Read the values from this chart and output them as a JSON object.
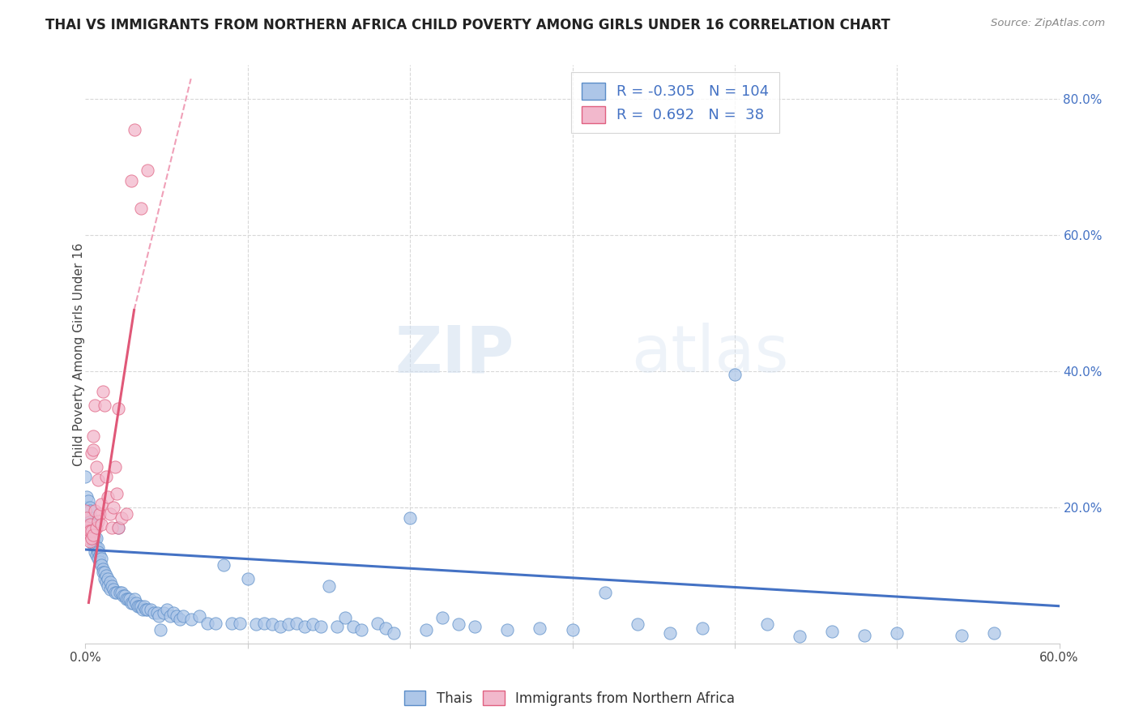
{
  "title": "THAI VS IMMIGRANTS FROM NORTHERN AFRICA CHILD POVERTY AMONG GIRLS UNDER 16 CORRELATION CHART",
  "source": "Source: ZipAtlas.com",
  "ylabel": "Child Poverty Among Girls Under 16",
  "xlim": [
    0.0,
    0.6
  ],
  "ylim": [
    0.0,
    0.85
  ],
  "watermark_zip": "ZIP",
  "watermark_atlas": "atlas",
  "legend_thai_R": "-0.305",
  "legend_thai_N": "104",
  "legend_na_R": "0.692",
  "legend_na_N": "38",
  "thai_color": "#adc6e8",
  "na_color": "#f2b8cc",
  "thai_edge_color": "#5b8dc8",
  "na_edge_color": "#e06080",
  "thai_line_color": "#4472c4",
  "na_line_color": "#e05878",
  "na_dash_color": "#f0a0b8",
  "background_color": "#ffffff",
  "grid_color": "#d8d8d8",
  "title_fontsize": 12,
  "thai_scatter": [
    [
      0.0,
      0.245
    ],
    [
      0.001,
      0.215
    ],
    [
      0.001,
      0.2
    ],
    [
      0.002,
      0.21
    ],
    [
      0.002,
      0.185
    ],
    [
      0.002,
      0.175
    ],
    [
      0.003,
      0.2
    ],
    [
      0.003,
      0.195
    ],
    [
      0.003,
      0.16
    ],
    [
      0.004,
      0.185
    ],
    [
      0.004,
      0.175
    ],
    [
      0.004,
      0.155
    ],
    [
      0.005,
      0.175
    ],
    [
      0.005,
      0.165
    ],
    [
      0.005,
      0.145
    ],
    [
      0.006,
      0.155
    ],
    [
      0.006,
      0.145
    ],
    [
      0.006,
      0.135
    ],
    [
      0.007,
      0.155
    ],
    [
      0.007,
      0.14
    ],
    [
      0.007,
      0.13
    ],
    [
      0.008,
      0.14
    ],
    [
      0.008,
      0.135
    ],
    [
      0.008,
      0.125
    ],
    [
      0.009,
      0.13
    ],
    [
      0.009,
      0.12
    ],
    [
      0.01,
      0.125
    ],
    [
      0.01,
      0.115
    ],
    [
      0.011,
      0.11
    ],
    [
      0.011,
      0.105
    ],
    [
      0.012,
      0.105
    ],
    [
      0.012,
      0.095
    ],
    [
      0.013,
      0.1
    ],
    [
      0.013,
      0.09
    ],
    [
      0.014,
      0.095
    ],
    [
      0.014,
      0.085
    ],
    [
      0.015,
      0.09
    ],
    [
      0.015,
      0.08
    ],
    [
      0.016,
      0.085
    ],
    [
      0.017,
      0.08
    ],
    [
      0.018,
      0.075
    ],
    [
      0.019,
      0.075
    ],
    [
      0.02,
      0.17
    ],
    [
      0.021,
      0.075
    ],
    [
      0.022,
      0.075
    ],
    [
      0.023,
      0.07
    ],
    [
      0.024,
      0.07
    ],
    [
      0.025,
      0.065
    ],
    [
      0.026,
      0.065
    ],
    [
      0.027,
      0.065
    ],
    [
      0.028,
      0.06
    ],
    [
      0.029,
      0.06
    ],
    [
      0.03,
      0.065
    ],
    [
      0.031,
      0.06
    ],
    [
      0.032,
      0.055
    ],
    [
      0.033,
      0.055
    ],
    [
      0.034,
      0.055
    ],
    [
      0.035,
      0.05
    ],
    [
      0.036,
      0.055
    ],
    [
      0.037,
      0.05
    ],
    [
      0.038,
      0.05
    ],
    [
      0.04,
      0.05
    ],
    [
      0.042,
      0.045
    ],
    [
      0.044,
      0.045
    ],
    [
      0.045,
      0.04
    ],
    [
      0.046,
      0.02
    ],
    [
      0.048,
      0.045
    ],
    [
      0.05,
      0.05
    ],
    [
      0.052,
      0.04
    ],
    [
      0.054,
      0.045
    ],
    [
      0.056,
      0.04
    ],
    [
      0.058,
      0.035
    ],
    [
      0.06,
      0.04
    ],
    [
      0.065,
      0.035
    ],
    [
      0.07,
      0.04
    ],
    [
      0.075,
      0.03
    ],
    [
      0.08,
      0.03
    ],
    [
      0.085,
      0.115
    ],
    [
      0.09,
      0.03
    ],
    [
      0.095,
      0.03
    ],
    [
      0.1,
      0.095
    ],
    [
      0.105,
      0.028
    ],
    [
      0.11,
      0.03
    ],
    [
      0.115,
      0.028
    ],
    [
      0.12,
      0.025
    ],
    [
      0.125,
      0.028
    ],
    [
      0.13,
      0.03
    ],
    [
      0.135,
      0.025
    ],
    [
      0.14,
      0.028
    ],
    [
      0.145,
      0.025
    ],
    [
      0.15,
      0.085
    ],
    [
      0.155,
      0.025
    ],
    [
      0.16,
      0.038
    ],
    [
      0.165,
      0.025
    ],
    [
      0.17,
      0.02
    ],
    [
      0.18,
      0.03
    ],
    [
      0.185,
      0.022
    ],
    [
      0.19,
      0.015
    ],
    [
      0.2,
      0.185
    ],
    [
      0.21,
      0.02
    ],
    [
      0.22,
      0.038
    ],
    [
      0.23,
      0.028
    ],
    [
      0.24,
      0.025
    ],
    [
      0.26,
      0.02
    ],
    [
      0.28,
      0.022
    ],
    [
      0.3,
      0.02
    ],
    [
      0.32,
      0.075
    ],
    [
      0.34,
      0.028
    ],
    [
      0.36,
      0.015
    ],
    [
      0.38,
      0.022
    ],
    [
      0.4,
      0.395
    ],
    [
      0.42,
      0.028
    ],
    [
      0.44,
      0.01
    ],
    [
      0.46,
      0.018
    ],
    [
      0.48,
      0.012
    ],
    [
      0.5,
      0.015
    ],
    [
      0.54,
      0.012
    ],
    [
      0.56,
      0.015
    ]
  ],
  "na_scatter": [
    [
      0.0,
      0.195
    ],
    [
      0.001,
      0.185
    ],
    [
      0.001,
      0.17
    ],
    [
      0.002,
      0.165
    ],
    [
      0.002,
      0.155
    ],
    [
      0.003,
      0.175
    ],
    [
      0.003,
      0.165
    ],
    [
      0.003,
      0.15
    ],
    [
      0.004,
      0.28
    ],
    [
      0.004,
      0.165
    ],
    [
      0.004,
      0.155
    ],
    [
      0.005,
      0.305
    ],
    [
      0.005,
      0.285
    ],
    [
      0.005,
      0.16
    ],
    [
      0.006,
      0.35
    ],
    [
      0.006,
      0.195
    ],
    [
      0.007,
      0.26
    ],
    [
      0.007,
      0.17
    ],
    [
      0.008,
      0.24
    ],
    [
      0.008,
      0.18
    ],
    [
      0.009,
      0.19
    ],
    [
      0.01,
      0.205
    ],
    [
      0.01,
      0.175
    ],
    [
      0.011,
      0.37
    ],
    [
      0.012,
      0.35
    ],
    [
      0.013,
      0.245
    ],
    [
      0.014,
      0.215
    ],
    [
      0.015,
      0.19
    ],
    [
      0.016,
      0.17
    ],
    [
      0.017,
      0.2
    ],
    [
      0.018,
      0.26
    ],
    [
      0.019,
      0.22
    ],
    [
      0.02,
      0.345
    ],
    [
      0.02,
      0.17
    ],
    [
      0.022,
      0.185
    ],
    [
      0.025,
      0.19
    ],
    [
      0.028,
      0.68
    ],
    [
      0.03,
      0.755
    ],
    [
      0.034,
      0.64
    ],
    [
      0.038,
      0.695
    ]
  ],
  "thai_trendline": [
    [
      0.0,
      0.138
    ],
    [
      0.6,
      0.055
    ]
  ],
  "na_trendline_solid": [
    [
      0.002,
      0.06
    ],
    [
      0.03,
      0.49
    ]
  ],
  "na_trendline_dash": [
    [
      0.03,
      0.49
    ],
    [
      0.065,
      0.83
    ]
  ],
  "axis_label_color": "#4472c4"
}
